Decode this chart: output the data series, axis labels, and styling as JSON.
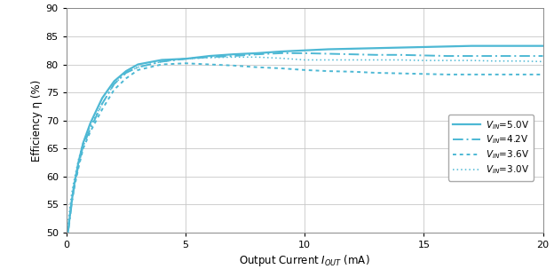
{
  "xlim": [
    0,
    20
  ],
  "ylim": [
    50,
    90
  ],
  "xticks": [
    0,
    5,
    10,
    15,
    20
  ],
  "yticks": [
    50,
    55,
    60,
    65,
    70,
    75,
    80,
    85,
    90
  ],
  "grid_color": "#c8c8c8",
  "background_color": "#ffffff",
  "line_color": "#4db8d4",
  "series": [
    {
      "label": "$V_{IN}$=5.0V",
      "linestyle": "solid",
      "linewidth": 1.6,
      "dashes": [],
      "x": [
        0.05,
        0.1,
        0.2,
        0.3,
        0.5,
        0.7,
        1.0,
        1.5,
        2.0,
        2.5,
        3.0,
        4.0,
        5.0,
        6.0,
        7.0,
        8.0,
        9.0,
        10.0,
        11.0,
        12.0,
        13.0,
        14.0,
        15.0,
        16.0,
        17.0,
        18.0,
        19.0,
        20.0
      ],
      "y": [
        50.0,
        51.5,
        55.0,
        58.0,
        62.5,
        66.0,
        69.5,
        74.0,
        77.0,
        78.8,
        80.0,
        80.8,
        81.0,
        81.5,
        81.8,
        82.0,
        82.3,
        82.5,
        82.7,
        82.8,
        82.9,
        83.0,
        83.1,
        83.2,
        83.3,
        83.3,
        83.3,
        83.3
      ]
    },
    {
      "label": "$V_{IN}$=4.2V",
      "linestyle": "dashdot",
      "linewidth": 1.4,
      "dashes": [
        6,
        2,
        1,
        2
      ],
      "x": [
        0.05,
        0.1,
        0.2,
        0.3,
        0.5,
        0.7,
        1.0,
        1.5,
        2.0,
        2.5,
        3.0,
        4.0,
        5.0,
        6.0,
        7.0,
        8.0,
        9.0,
        10.0,
        11.0,
        12.0,
        13.0,
        14.0,
        15.0,
        16.0,
        17.0,
        18.0,
        19.0,
        20.0
      ],
      "y": [
        50.0,
        51.0,
        54.5,
        57.5,
        62.0,
        65.5,
        68.5,
        73.0,
        76.5,
        78.5,
        79.5,
        80.5,
        81.0,
        81.3,
        81.5,
        81.8,
        82.0,
        82.0,
        81.9,
        81.8,
        81.7,
        81.7,
        81.6,
        81.5,
        81.5,
        81.5,
        81.5,
        81.5
      ]
    },
    {
      "label": "$V_{IN}$=3.6V",
      "linestyle": "dotted",
      "linewidth": 1.4,
      "dashes": [
        2,
        2
      ],
      "x": [
        0.05,
        0.1,
        0.2,
        0.3,
        0.5,
        0.7,
        1.0,
        1.5,
        2.0,
        2.5,
        3.0,
        4.0,
        5.0,
        6.0,
        7.0,
        8.0,
        9.0,
        10.0,
        11.0,
        12.0,
        13.0,
        14.0,
        15.0,
        16.0,
        17.0,
        18.0,
        19.0,
        20.0
      ],
      "y": [
        50.5,
        52.0,
        55.0,
        57.5,
        61.5,
        65.0,
        68.0,
        72.0,
        75.5,
        77.5,
        79.0,
        80.0,
        80.2,
        80.0,
        79.8,
        79.5,
        79.3,
        79.0,
        78.8,
        78.7,
        78.5,
        78.4,
        78.3,
        78.2,
        78.2,
        78.2,
        78.2,
        78.2
      ]
    },
    {
      "label": "$V_{IN}$=3.0V",
      "linestyle": "dotted",
      "linewidth": 1.1,
      "dashes": [
        1,
        2
      ],
      "x": [
        0.05,
        0.1,
        0.2,
        0.3,
        0.5,
        0.7,
        1.0,
        1.5,
        2.0,
        2.5,
        3.0,
        4.0,
        5.0,
        6.0,
        7.0,
        8.0,
        9.0,
        10.0,
        11.0,
        12.0,
        13.0,
        14.0,
        15.0,
        16.0,
        17.0,
        18.0,
        19.0,
        20.0
      ],
      "y": [
        51.5,
        53.0,
        56.5,
        59.0,
        63.0,
        66.0,
        69.0,
        73.0,
        76.5,
        78.5,
        79.5,
        80.5,
        81.0,
        81.2,
        81.3,
        81.3,
        81.1,
        80.8,
        80.8,
        80.8,
        80.8,
        80.8,
        80.7,
        80.7,
        80.7,
        80.6,
        80.6,
        80.5
      ]
    }
  ]
}
